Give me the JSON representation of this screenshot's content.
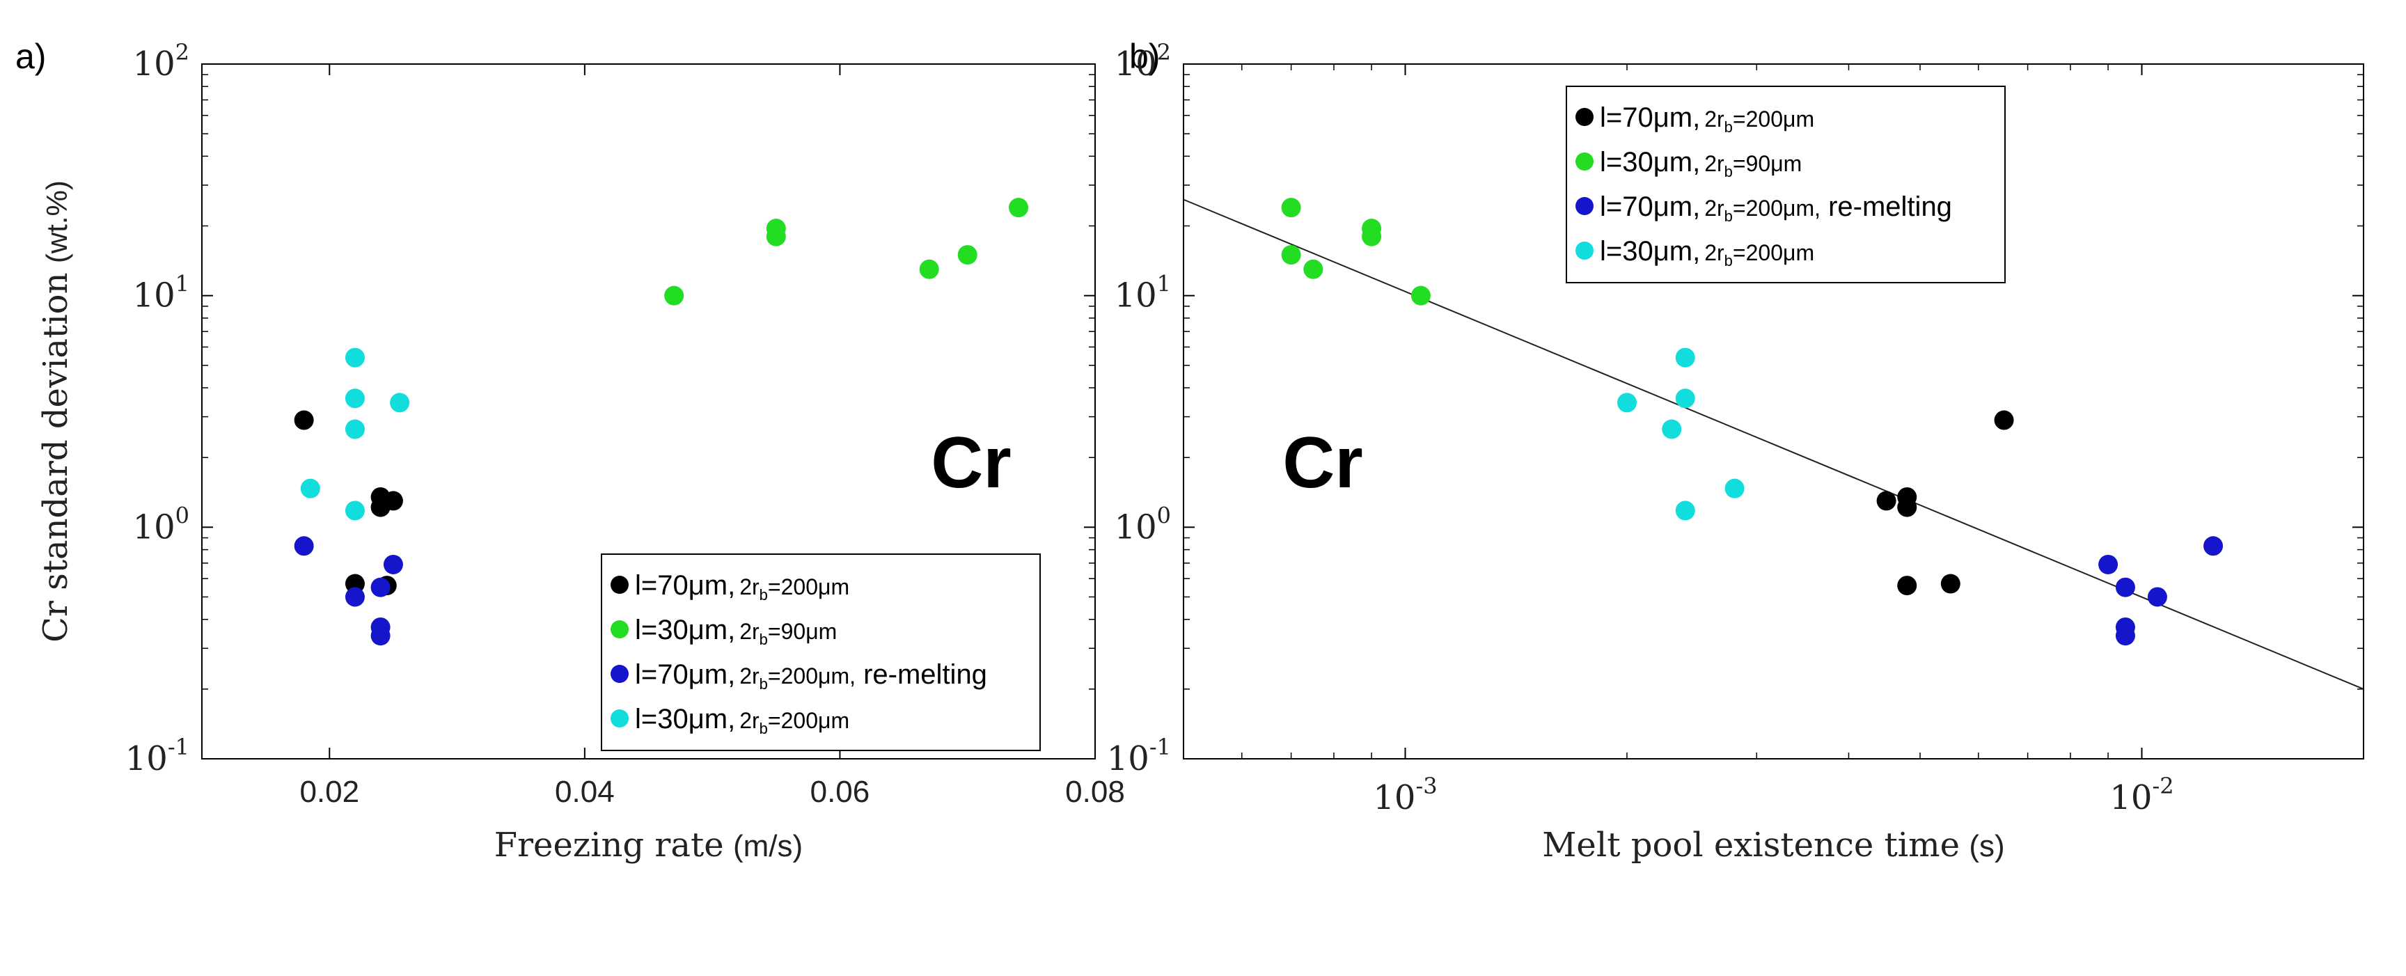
{
  "chart_data": [
    {
      "panel_label": "a)",
      "type": "scatter",
      "xlabel": "Freezing rate",
      "xlabel_unit": "(m/s)",
      "ylabel": "Cr standard deviation",
      "ylabel_unit": "(wt.%)",
      "xscale": "linear",
      "yscale": "log",
      "xlim": [
        0.01,
        0.08
      ],
      "ylim": [
        0.1,
        100
      ],
      "xticks": [
        0.02,
        0.04,
        0.06,
        0.08
      ],
      "xtick_labels": [
        "0.02",
        "0.04",
        "0.06",
        "0.08"
      ],
      "yticks": [
        0.1,
        1,
        10,
        100
      ],
      "ytick_labels": [
        {
          "base": "10",
          "exp": "-1"
        },
        {
          "base": "10",
          "exp": "0"
        },
        {
          "base": "10",
          "exp": "1"
        },
        {
          "base": "10",
          "exp": "2"
        }
      ],
      "annotation": "Cr",
      "legend_position": "bottom-right",
      "series": [
        {
          "name": "l=70μm, 2r_b=200μm",
          "label_main": "l=70μm,",
          "label_sub_a": "2r",
          "label_sub_b": "b",
          "label_sub_c": "=200μm",
          "label_tail": "",
          "color": "#000000",
          "points": [
            [
              0.018,
              2.9
            ],
            [
              0.022,
              0.57
            ],
            [
              0.024,
              1.35
            ],
            [
              0.024,
              1.22
            ],
            [
              0.0245,
              0.56
            ],
            [
              0.025,
              1.3
            ]
          ]
        },
        {
          "name": "l=30μm, 2r_b=90μm",
          "label_main": "l=30μm,",
          "label_sub_a": "2r",
          "label_sub_b": "b",
          "label_sub_c": "=90μm",
          "label_tail": "",
          "color": "#22dd22",
          "points": [
            [
              0.047,
              10
            ],
            [
              0.055,
              19.5
            ],
            [
              0.055,
              18
            ],
            [
              0.067,
              13
            ],
            [
              0.07,
              15
            ],
            [
              0.074,
              24
            ]
          ]
        },
        {
          "name": "l=70μm, 2r_b=200μm, re-melting",
          "label_main": "l=70μm,",
          "label_sub_a": "2r",
          "label_sub_b": "b",
          "label_sub_c": "=200μm,",
          "label_tail": " re-melting",
          "color": "#1515cc",
          "points": [
            [
              0.018,
              0.83
            ],
            [
              0.022,
              0.5
            ],
            [
              0.024,
              0.55
            ],
            [
              0.024,
              0.37
            ],
            [
              0.024,
              0.34
            ],
            [
              0.025,
              0.69
            ]
          ]
        },
        {
          "name": "l=30μm, 2r_b=200μm",
          "label_main": "l=30μm,",
          "label_sub_a": "2r",
          "label_sub_b": "b",
          "label_sub_c": "=200μm",
          "label_tail": "",
          "color": "#11dddd",
          "points": [
            [
              0.0185,
              1.47
            ],
            [
              0.022,
              5.4
            ],
            [
              0.022,
              3.6
            ],
            [
              0.022,
              2.65
            ],
            [
              0.022,
              1.18
            ],
            [
              0.0255,
              3.45
            ]
          ]
        }
      ]
    },
    {
      "panel_label": "b)",
      "type": "scatter",
      "xlabel": "Melt pool existence time",
      "xlabel_unit": "(s)",
      "ylabel": "",
      "xscale": "log",
      "yscale": "log",
      "xlim": [
        0.0005,
        0.02
      ],
      "ylim": [
        0.1,
        100
      ],
      "xticks": [
        0.001,
        0.01
      ],
      "xtick_labels": [
        {
          "base": "10",
          "exp": "-3"
        },
        {
          "base": "10",
          "exp": "-2"
        }
      ],
      "yticks": [
        0.1,
        1,
        10,
        100
      ],
      "ytick_labels": [
        {
          "base": "10",
          "exp": "-1"
        },
        {
          "base": "10",
          "exp": "0"
        },
        {
          "base": "10",
          "exp": "1"
        },
        {
          "base": "10",
          "exp": "2"
        }
      ],
      "annotation": "Cr",
      "legend_position": "top-right",
      "fit_line": {
        "x": [
          0.0005,
          0.02
        ],
        "y": [
          26,
          0.2
        ]
      },
      "series": [
        {
          "name": "l=70μm, 2r_b=200μm",
          "label_main": "l=70μm,",
          "label_sub_a": "2r",
          "label_sub_b": "b",
          "label_sub_c": "=200μm",
          "label_tail": "",
          "color": "#000000",
          "points": [
            [
              0.0045,
              1.3
            ],
            [
              0.0048,
              1.35
            ],
            [
              0.0048,
              1.22
            ],
            [
              0.0048,
              0.56
            ],
            [
              0.0055,
              0.57
            ],
            [
              0.0065,
              2.9
            ]
          ]
        },
        {
          "name": "l=30μm, 2r_b=90μm",
          "label_main": "l=30μm,",
          "label_sub_a": "2r",
          "label_sub_b": "b",
          "label_sub_c": "=90μm",
          "label_tail": "",
          "color": "#22dd22",
          "points": [
            [
              0.0007,
              24
            ],
            [
              0.0007,
              15
            ],
            [
              0.00075,
              13
            ],
            [
              0.0009,
              19.5
            ],
            [
              0.0009,
              18
            ],
            [
              0.00105,
              10
            ]
          ]
        },
        {
          "name": "l=70μm, 2r_b=200μm, re-melting",
          "label_main": "l=70μm,",
          "label_sub_a": "2r",
          "label_sub_b": "b",
          "label_sub_c": "=200μm,",
          "label_tail": " re-melting",
          "color": "#1515cc",
          "points": [
            [
              0.009,
              0.69
            ],
            [
              0.0095,
              0.55
            ],
            [
              0.0095,
              0.37
            ],
            [
              0.0095,
              0.34
            ],
            [
              0.0105,
              0.5
            ],
            [
              0.0125,
              0.83
            ]
          ]
        },
        {
          "name": "l=30μm, 2r_b=200μm",
          "label_main": "l=30μm,",
          "label_sub_a": "2r",
          "label_sub_b": "b",
          "label_sub_c": "=200μm",
          "label_tail": "",
          "color": "#11dddd",
          "points": [
            [
              0.002,
              3.45
            ],
            [
              0.0023,
              2.65
            ],
            [
              0.0024,
              5.4
            ],
            [
              0.0024,
              3.6
            ],
            [
              0.0024,
              1.18
            ],
            [
              0.0028,
              1.47
            ]
          ]
        }
      ]
    }
  ]
}
